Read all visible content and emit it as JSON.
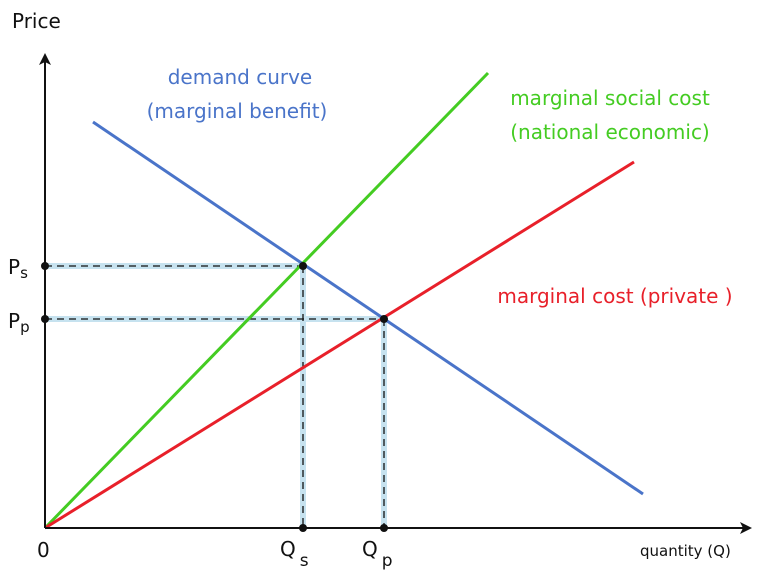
{
  "axes": {
    "y_label": "Price",
    "x_label": "quantity (Q)",
    "origin": "0"
  },
  "price_labels": [
    {
      "main": "P",
      "sub": "s"
    },
    {
      "main": "P",
      "sub": "p"
    }
  ],
  "quantity_labels": [
    {
      "main": "Q",
      "sub": "s"
    },
    {
      "main": "Q",
      "sub": "p"
    }
  ],
  "curves": {
    "demand": [
      "demand curve",
      "(marginal benefit)"
    ],
    "marginal_social_cost": [
      "marginal social cost",
      "(national economic)"
    ],
    "marginal_cost": [
      "marginal cost (private )"
    ]
  }
}
